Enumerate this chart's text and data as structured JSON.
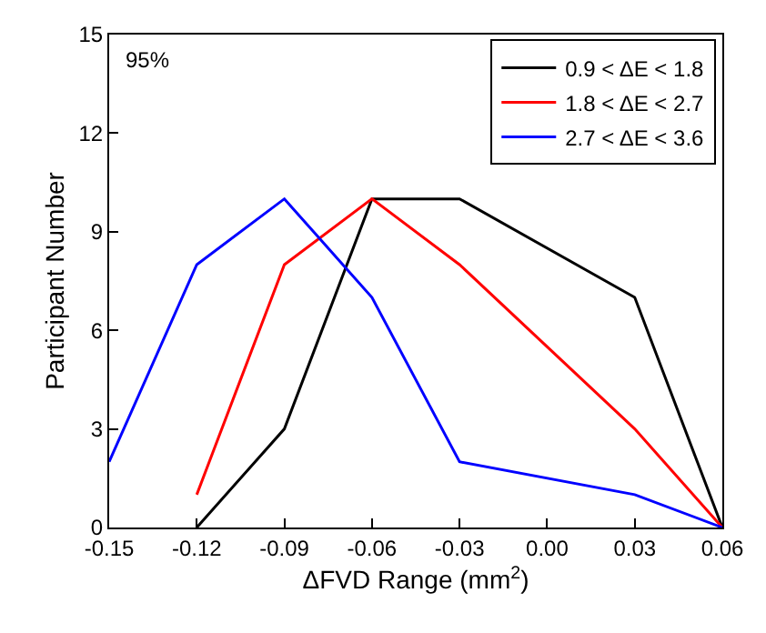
{
  "chart_data": {
    "type": "line",
    "xlabel": "ΔFVD Range (mm$^{2}$)",
    "ylabel": "Participant Number",
    "annotations": [
      "95%"
    ],
    "series": [
      {
        "name": "0.9 < ΔE < 1.8",
        "color": "#000000",
        "x": [
          -0.12,
          -0.09,
          -0.06,
          -0.03,
          0.03,
          0.06
        ],
        "values": [
          0,
          3,
          10,
          10,
          7,
          0
        ]
      },
      {
        "name": "1.8 < ΔE < 2.7",
        "color": "#ff0000",
        "x": [
          -0.12,
          -0.09,
          -0.06,
          -0.03,
          0.03,
          0.06
        ],
        "values": [
          1,
          8,
          10,
          8,
          3,
          0
        ]
      },
      {
        "name": "2.7 < ΔE < 3.6",
        "color": "#0000ff",
        "x": [
          -0.15,
          -0.12,
          -0.09,
          -0.06,
          -0.03,
          0.03,
          0.06
        ],
        "values": [
          2,
          8,
          10,
          7,
          2,
          1,
          0
        ]
      }
    ],
    "xlim": [
      -0.15,
      0.06
    ],
    "xticks": [
      {
        "value": -0.15,
        "label": "-0.15"
      },
      {
        "value": -0.12,
        "label": "-0.12"
      },
      {
        "value": -0.09,
        "label": "-0.09"
      },
      {
        "value": -0.06,
        "label": "-0.06"
      },
      {
        "value": -0.03,
        "label": "-0.03"
      },
      {
        "value": 0,
        "label": "0.00"
      },
      {
        "value": 0.03,
        "label": "0.03"
      },
      {
        "value": 0.06,
        "label": "0.06"
      }
    ],
    "ylim": [
      0,
      15
    ],
    "yticks": [
      0,
      3,
      6,
      9,
      12,
      15
    ],
    "legend": "top right",
    "marker": "none",
    "line_style": "solid"
  }
}
